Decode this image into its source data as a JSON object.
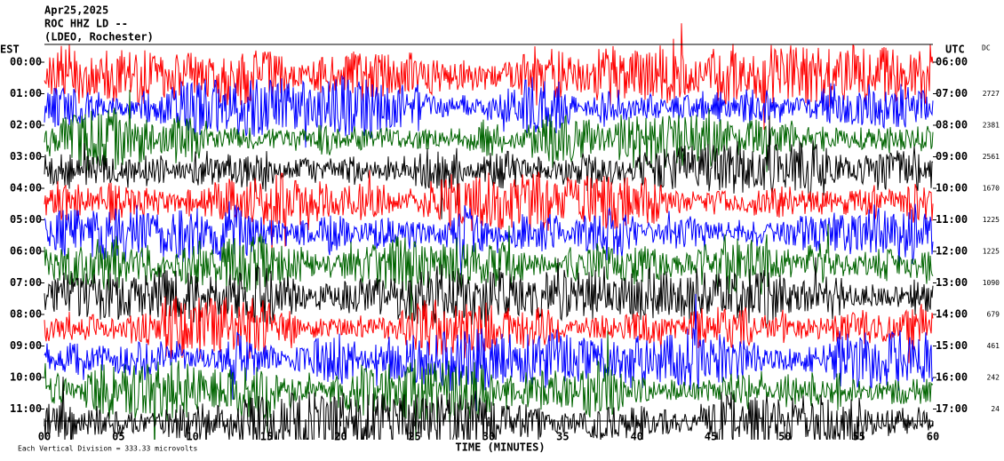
{
  "header": {
    "lines": [
      "Apr25,2025",
      "ROC HHZ LD --",
      "(LDEO, Rochester)"
    ]
  },
  "left_axis_label": "EST",
  "right_axis_label": "UTC",
  "dc_label": "DC",
  "rows": [
    {
      "est": "00:00",
      "utc": "06:00"
    },
    {
      "est": "01:00",
      "utc": "07:00",
      "dc": "2727"
    },
    {
      "est": "02:00",
      "utc": "08:00",
      "dc": "2381"
    },
    {
      "est": "03:00",
      "utc": "09:00",
      "dc": "2561"
    },
    {
      "est": "04:00",
      "utc": "10:00",
      "dc": "1670"
    },
    {
      "est": "05:00",
      "utc": "11:00",
      "dc": "1225"
    },
    {
      "est": "06:00",
      "utc": "12:00",
      "dc": "1225"
    },
    {
      "est": "07:00",
      "utc": "13:00",
      "dc": "1090"
    },
    {
      "est": "08:00",
      "utc": "14:00",
      "dc": "679"
    },
    {
      "est": "09:00",
      "utc": "15:00",
      "dc": "461"
    },
    {
      "est": "10:00",
      "utc": "16:00",
      "dc": "242"
    },
    {
      "est": "11:00",
      "utc": "17:00",
      "dc": "24"
    }
  ],
  "x_ticks": [
    "00",
    "05",
    "10",
    "15",
    "20",
    "25",
    "30",
    "35",
    "40",
    "45",
    "50",
    "55",
    "60"
  ],
  "x_axis_label": "TIME (MINUTES)",
  "footnote": "Each Vertical Division = 333.33 microvolts"
}
